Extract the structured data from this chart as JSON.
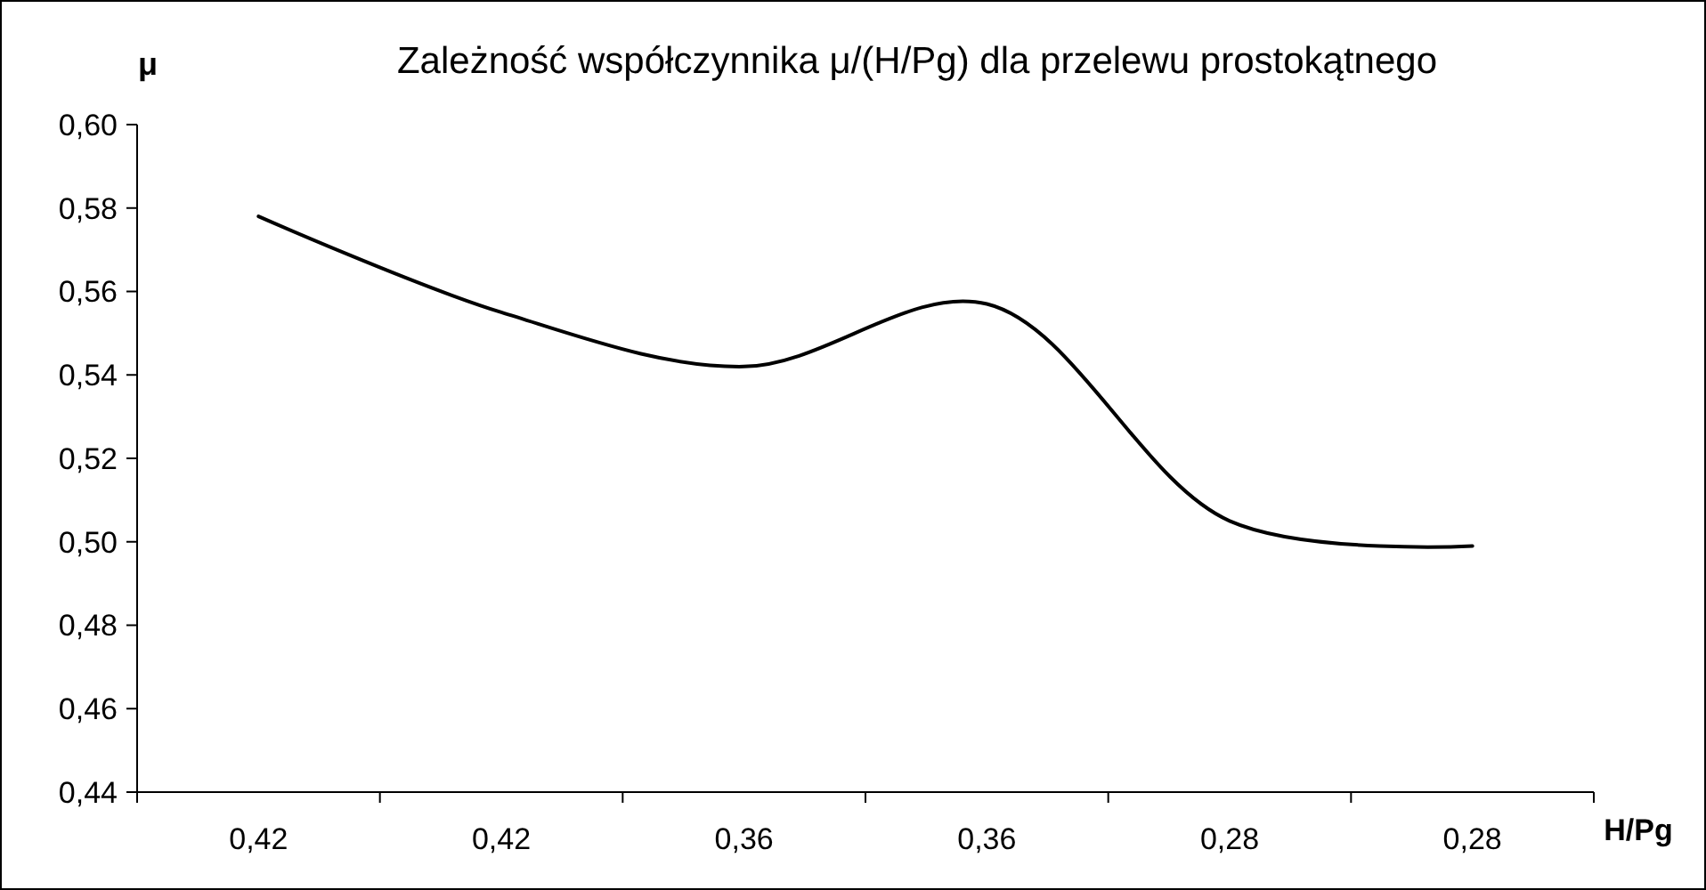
{
  "chart_data": {
    "type": "line",
    "title": "Zależność współczynnika μ/(H/Pg) dla przelewu prostokątnego",
    "ylabel": "μ",
    "xlabel": "H/Pg",
    "categories": [
      "0,42",
      "0,42",
      "0,36",
      "0,36",
      "0,28",
      "0,28"
    ],
    "series": [
      {
        "color": "#000000",
        "values": [
          0.578,
          0.555,
          0.542,
          0.557,
          0.505,
          0.499
        ]
      }
    ],
    "ylim": [
      0.44,
      0.6
    ],
    "yticks": [
      {
        "value": 0.44,
        "label": "0,44"
      },
      {
        "value": 0.46,
        "label": "0,46"
      },
      {
        "value": 0.48,
        "label": "0,48"
      },
      {
        "value": 0.5,
        "label": "0,50"
      },
      {
        "value": 0.52,
        "label": "0,52"
      },
      {
        "value": 0.54,
        "label": "0,54"
      },
      {
        "value": 0.56,
        "label": "0,56"
      },
      {
        "value": 0.58,
        "label": "0,58"
      },
      {
        "value": 0.6,
        "label": "0,60"
      }
    ],
    "grid": false,
    "marker": "none",
    "line_style": "solid"
  }
}
